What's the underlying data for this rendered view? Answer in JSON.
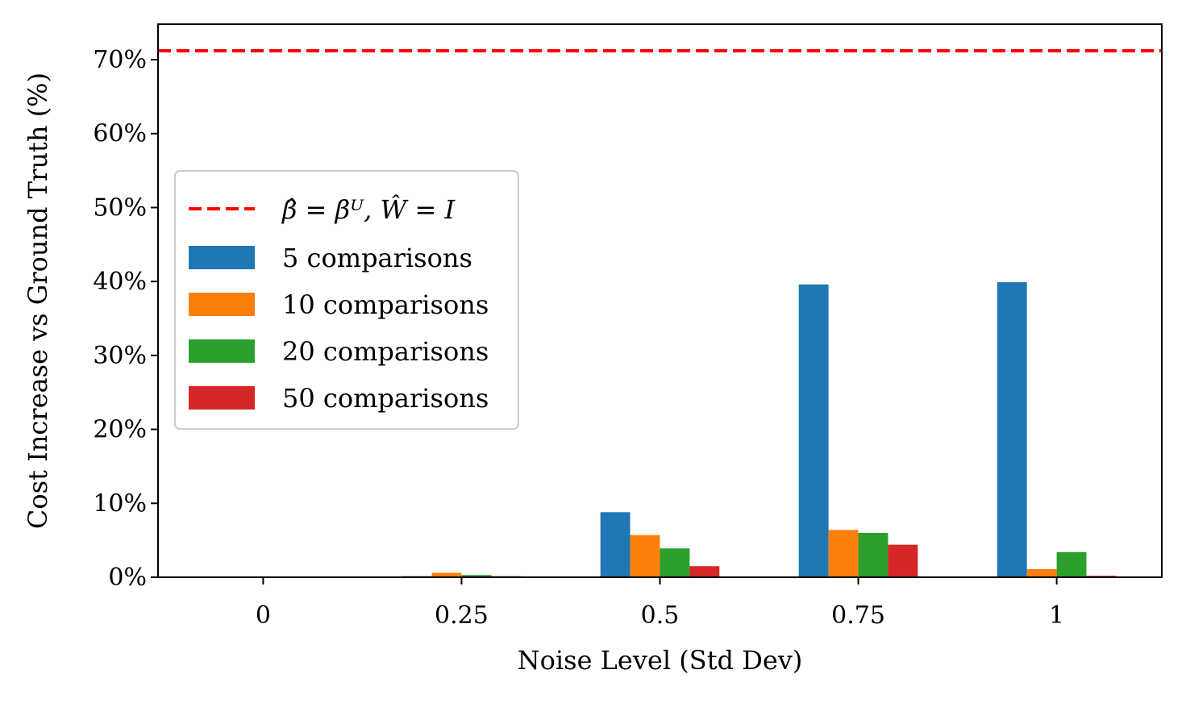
{
  "chart_data": {
    "type": "bar",
    "title": "",
    "xlabel": "Noise Level (Std Dev)",
    "ylabel": "Cost Increase vs Ground Truth (%)",
    "categories": [
      "0",
      "0.25",
      "0.5",
      "0.75",
      "1"
    ],
    "x_range": [
      -0.53,
      4.53
    ],
    "ylim": [
      0,
      74.8
    ],
    "y_ticks": [
      0,
      10,
      20,
      30,
      40,
      50,
      60,
      70
    ],
    "y_tick_labels": [
      "0%",
      "10%",
      "20%",
      "30%",
      "40%",
      "50%",
      "60%",
      "70%"
    ],
    "grid": false,
    "legend_position": "center-left",
    "reference_line": {
      "name": "β̂ = βᵁ, Ŵ = I",
      "value": 71.2,
      "style": "dashed",
      "color": "#ff0000"
    },
    "series": [
      {
        "name": "5 comparisons",
        "color": "#1f77b4",
        "values": [
          0.0,
          0.15,
          8.8,
          39.6,
          39.9
        ]
      },
      {
        "name": "10 comparisons",
        "color": "#ff7f0e",
        "values": [
          0.0,
          0.6,
          5.7,
          6.4,
          1.1
        ]
      },
      {
        "name": "20 comparisons",
        "color": "#2ca02c",
        "values": [
          0.0,
          0.3,
          3.9,
          6.0,
          3.4
        ]
      },
      {
        "name": "50 comparisons",
        "color": "#d62728",
        "values": [
          0.0,
          0.15,
          1.5,
          4.4,
          0.2
        ]
      }
    ]
  }
}
